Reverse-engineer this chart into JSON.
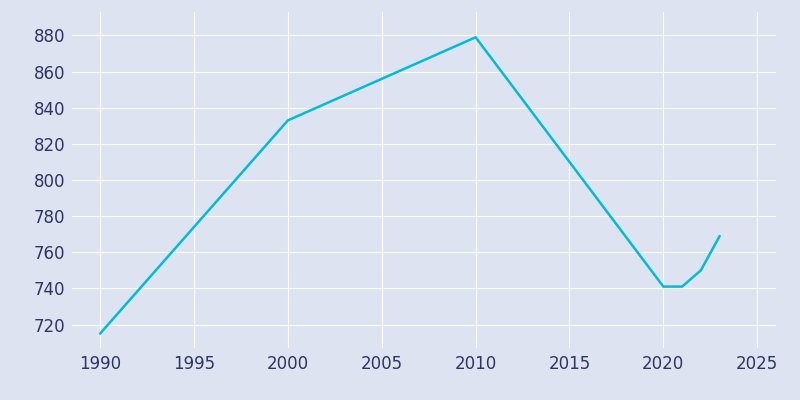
{
  "years": [
    1990,
    2000,
    2010,
    2020,
    2021,
    2022,
    2023
  ],
  "population": [
    715,
    833,
    879,
    741,
    741,
    750,
    769
  ],
  "line_color": "#00bcd4",
  "bg_color": "#dde3f0",
  "plot_bg_color": "#dde3f0",
  "grid_color": "#ffffff",
  "xlim": [
    1988.5,
    2026
  ],
  "ylim": [
    707,
    893
  ],
  "xticks": [
    1990,
    1995,
    2000,
    2005,
    2010,
    2015,
    2020,
    2025
  ],
  "yticks": [
    720,
    740,
    760,
    780,
    800,
    820,
    840,
    860,
    880
  ],
  "tick_color": "#2d3561",
  "line_width": 1.8,
  "tick_fontsize": 12
}
